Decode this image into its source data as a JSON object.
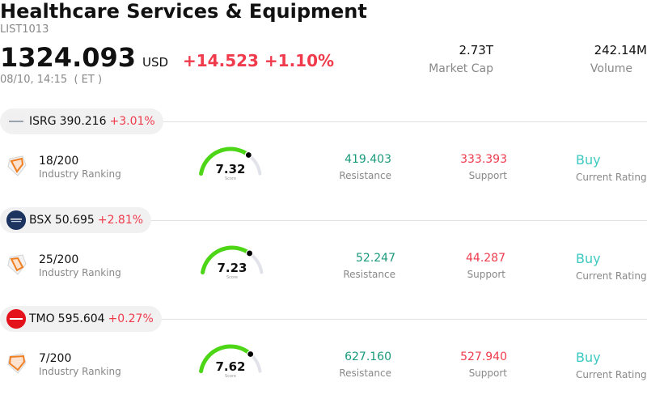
{
  "header": {
    "title": "Healthcare Services & Equipment",
    "code": "LIST1013",
    "price": "1324.093",
    "currency": "USD",
    "change": "+14.523 +1.10%",
    "timestamp": "08/10, 14:15  ( ET )"
  },
  "stats": {
    "market_cap_value": "2.73T",
    "market_cap_label": "Market Cap",
    "volume_value": "242.14M",
    "volume_label": "Volume"
  },
  "colors": {
    "negative_red": "#ef3b4c",
    "resistance_green": "#1a9a7c",
    "rating_teal": "#3cc9c0",
    "gauge_green": "#4cd616",
    "gauge_track": "#e2e2ea"
  },
  "stocks": [
    {
      "symbol": "ISRG",
      "price": "390.216",
      "change": "+3.01%",
      "logo_icon": "isrg-logo-icon",
      "logo_color": "#f0f0f0",
      "ranking": "18/200",
      "ranking_label": "Industry Ranking",
      "score": 7.32,
      "score_label": "7.32",
      "score_caption": "Score",
      "resistance": "419.403",
      "resistance_label": "Resistance",
      "support": "333.393",
      "support_label": "Support",
      "rating": "Buy",
      "rating_label": "Current Rating"
    },
    {
      "symbol": "BSX",
      "price": "50.695",
      "change": "+2.81%",
      "logo_icon": "bsx-logo-icon",
      "logo_color": "#1d3461",
      "ranking": "25/200",
      "ranking_label": "Industry Ranking",
      "score": 7.23,
      "score_label": "7.23",
      "score_caption": "Score",
      "resistance": "52.247",
      "resistance_label": "Resistance",
      "support": "44.287",
      "support_label": "Support",
      "rating": "Buy",
      "rating_label": "Current Rating"
    },
    {
      "symbol": "TMO",
      "price": "595.604",
      "change": "+0.27%",
      "logo_icon": "tmo-logo-icon",
      "logo_color": "#e3121b",
      "ranking": "7/200",
      "ranking_label": "Industry Ranking",
      "score": 7.62,
      "score_label": "7.62",
      "score_caption": "Score",
      "resistance": "627.160",
      "resistance_label": "Resistance",
      "support": "527.940",
      "support_label": "Support",
      "rating": "Buy",
      "rating_label": "Current Rating"
    }
  ]
}
